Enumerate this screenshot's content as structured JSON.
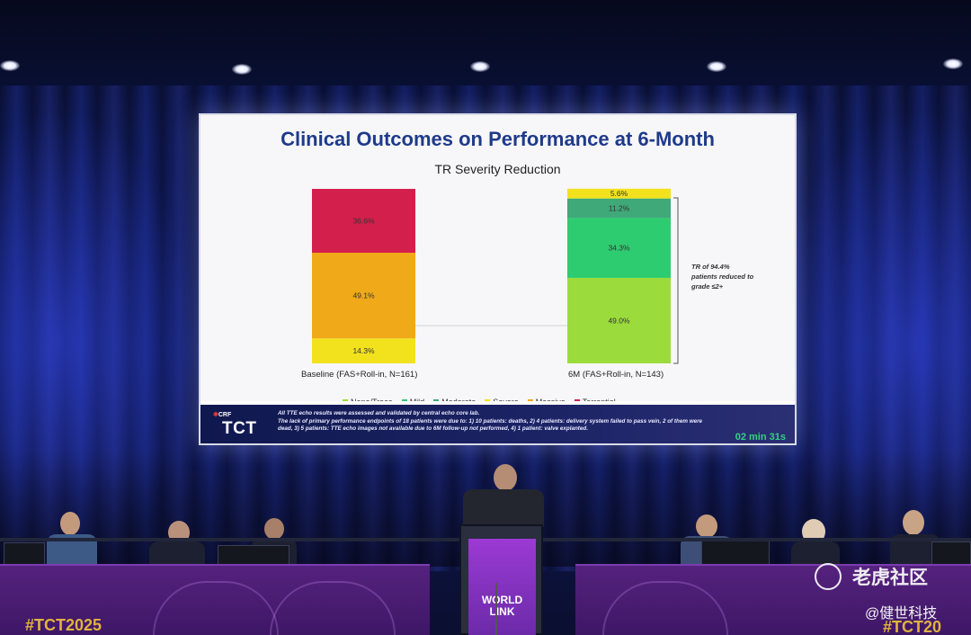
{
  "slide": {
    "title": "Clinical Outcomes on Performance at 6-Month",
    "subtitle": "TR Severity Reduction",
    "annotation": "TR of 94.4% patients reduced to grade ≤2+",
    "footnote_1": "All TTE echo results were assessed and validated by central echo core lab.",
    "footnote_2": "The lack of primary performance endpoints of 18 patients were due to: 1) 10 patients: deaths, 2) 4 patients: delivery system failed to pass vein, 2 of them were dead, 3) 5 patients: TTE echo images not available due to 6M follow-up not performed, 4) 1 patient: valve explanted.",
    "timer": "02 min 31s",
    "brand_small": "CRF",
    "brand_big": "TCT"
  },
  "chart_data": {
    "type": "bar",
    "stacked": true,
    "categories": [
      "Baseline (FAS+Roll-in, N=161)",
      "6M (FAS+Roll-in, N=143)"
    ],
    "series": [
      {
        "name": "None/Trace",
        "color": "#9bdc3c",
        "values": [
          0,
          49.0
        ]
      },
      {
        "name": "Mild",
        "color": "#2ecc71",
        "values": [
          0,
          34.3
        ]
      },
      {
        "name": "Moderate",
        "color": "#3fa97a",
        "values": [
          0,
          11.2
        ]
      },
      {
        "name": "Severe",
        "color": "#f2e21e",
        "values": [
          14.3,
          5.6
        ]
      },
      {
        "name": "Massive",
        "color": "#f0a919",
        "values": [
          49.1,
          0
        ]
      },
      {
        "name": "Torrential",
        "color": "#d31f4c",
        "values": [
          36.6,
          0
        ]
      }
    ],
    "segment_labels": [
      [
        "",
        "",
        "",
        "14.3%",
        "49.1%",
        "36.6%"
      ],
      [
        "49.0%",
        "34.3%",
        "11.2%",
        "5.6%",
        "",
        ""
      ]
    ],
    "ylim": [
      0,
      100
    ]
  },
  "venue": {
    "hashtag": "#TCT2025",
    "hashtag_right": "#TCT20",
    "podium_line1": "WORLD",
    "podium_line2": "LINK"
  },
  "watermark": {
    "site": "老虎社区",
    "author": "@健世科技"
  }
}
